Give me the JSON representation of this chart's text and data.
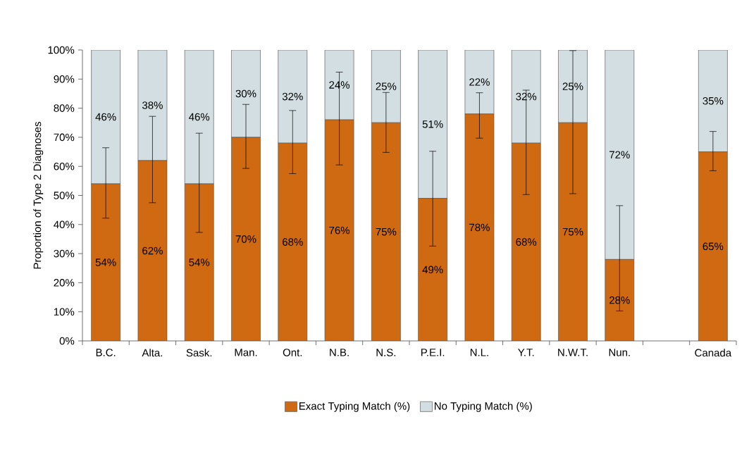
{
  "chart_data": {
    "type": "bar",
    "stacked": true,
    "ylabel": "Proportion of Type 2 Diagnoses",
    "categories": [
      "B.C.",
      "Alta.",
      "Sask.",
      "Man.",
      "Ont.",
      "N.B.",
      "N.S.",
      "P.E.I.",
      "N.L.",
      "Y.T.",
      "N.W.T.",
      "Nun.",
      null,
      "Canada"
    ],
    "series": [
      {
        "name": "Exact Typing Match (%)",
        "color": "#cf6a13",
        "values": [
          54,
          62,
          54,
          70,
          68,
          76,
          75,
          49,
          78,
          68,
          75,
          28,
          null,
          65
        ],
        "value_labels": [
          "54%",
          "62%",
          "54%",
          "70%",
          "68%",
          "76%",
          "75%",
          "49%",
          "78%",
          "68%",
          "75%",
          "28%",
          null,
          "65%"
        ],
        "errors": [
          [
            42.2,
            66.4
          ],
          [
            47.5,
            77.2
          ],
          [
            37.3,
            71.4
          ],
          [
            59.3,
            81.3
          ],
          [
            57.5,
            79.2
          ],
          [
            60.5,
            92.4
          ],
          [
            64.8,
            85.4
          ],
          [
            32.6,
            65.2
          ],
          [
            69.7,
            85.3
          ],
          [
            50.3,
            86.2
          ],
          [
            50.6,
            99.8
          ],
          [
            10.3,
            46.5
          ],
          null,
          [
            58.5,
            72.0
          ]
        ]
      },
      {
        "name": "No Typing Match (%)",
        "color": "#d3dee2",
        "values": [
          46,
          38,
          46,
          30,
          32,
          24,
          25,
          51,
          22,
          32,
          25,
          72,
          null,
          35
        ],
        "value_labels": [
          "46%",
          "38%",
          "46%",
          "30%",
          "32%",
          "24%",
          "25%",
          "51%",
          "22%",
          "32%",
          "25%",
          "72%",
          null,
          "35%"
        ]
      }
    ],
    "ylim": [
      0,
      100
    ],
    "yticks": [
      {
        "value": 0,
        "label": "0%"
      },
      {
        "value": 10,
        "label": "10%"
      },
      {
        "value": 20,
        "label": "20%"
      },
      {
        "value": 30,
        "label": "30%"
      },
      {
        "value": 40,
        "label": "40%"
      },
      {
        "value": 50,
        "label": "50%"
      },
      {
        "value": 60,
        "label": "60%"
      },
      {
        "value": 70,
        "label": "70%"
      },
      {
        "value": 80,
        "label": "80%"
      },
      {
        "value": 90,
        "label": "90%"
      },
      {
        "value": 100,
        "label": "100%"
      }
    ],
    "legend": "bottom"
  }
}
